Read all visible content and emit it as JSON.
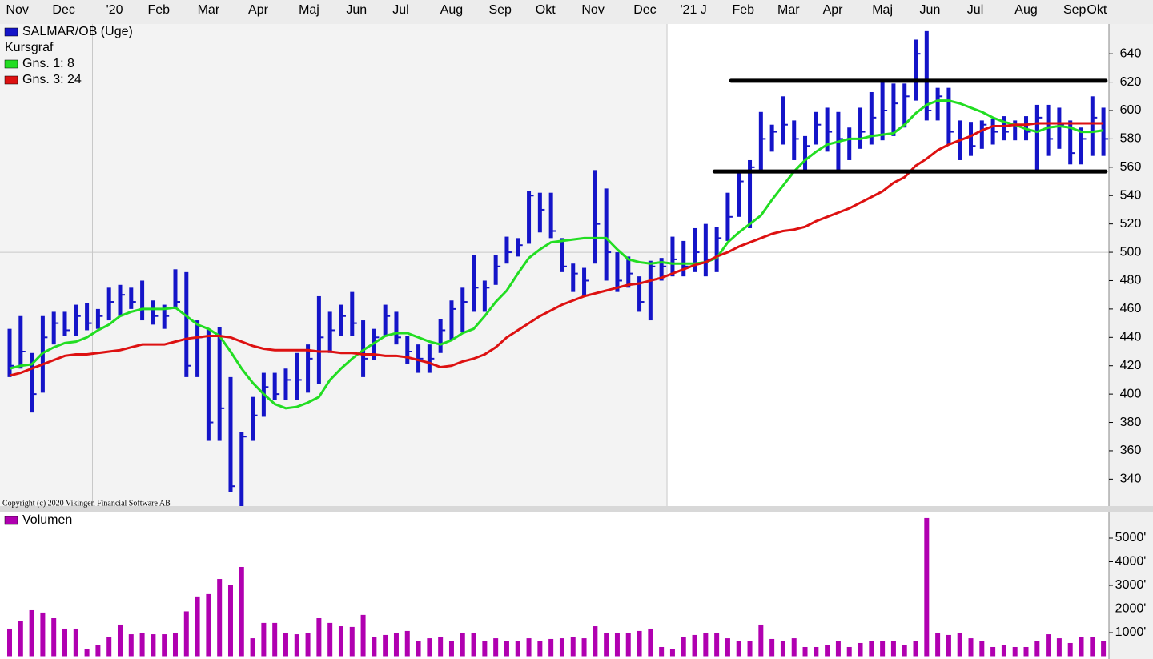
{
  "chart_data": [
    {
      "type": "ohlc",
      "subtitle": "Kursgraf",
      "annotation": "Copyright (c) 2020 Vikingen Financial Software AB",
      "x": [
        0,
        1,
        2,
        3,
        4,
        5,
        6,
        7,
        8,
        9,
        10,
        11,
        12,
        13,
        14,
        15,
        16,
        17,
        18,
        19,
        20,
        21,
        22,
        23,
        24,
        25,
        26,
        27,
        28,
        29,
        30,
        31,
        32,
        33,
        34,
        35,
        36,
        37,
        38,
        39,
        40,
        41,
        42,
        43,
        44,
        45,
        46,
        47,
        48,
        49,
        50,
        51,
        52,
        53,
        54,
        55,
        56,
        57,
        58,
        59,
        60,
        61,
        62,
        63,
        64,
        65,
        66,
        67,
        68,
        69,
        70,
        71,
        72,
        73,
        74,
        75,
        76,
        77,
        78,
        79,
        80,
        81,
        82,
        83,
        84,
        85,
        86,
        87,
        88,
        89,
        90,
        91,
        92,
        93,
        94,
        95,
        96,
        97,
        98,
        99
      ],
      "series": [
        {
          "name": "SALMAR/OB (Uge)",
          "color": "#1414c8",
          "high": [
            446,
            455,
            429,
            455,
            458,
            458,
            463,
            464,
            460,
            475,
            477,
            475,
            480,
            466,
            463,
            488,
            486,
            452,
            446,
            447,
            412,
            373,
            398,
            415,
            415,
            418,
            429,
            435,
            469,
            458,
            463,
            472,
            452,
            446,
            463,
            458,
            441,
            435,
            435,
            453,
            466,
            475,
            498,
            480,
            498,
            511,
            510,
            543,
            542,
            542,
            510,
            492,
            489,
            558,
            545,
            500,
            497,
            483,
            494,
            496,
            511,
            508,
            517,
            520,
            518,
            542,
            556,
            565,
            599,
            590,
            610,
            593,
            582,
            599,
            602,
            599,
            588,
            602,
            613,
            621,
            619,
            619,
            650,
            656,
            616,
            616,
            593,
            592,
            593,
            594,
            596,
            593,
            596,
            604,
            604,
            602,
            593,
            588,
            610,
            602
          ],
          "low": [
            412,
            418,
            387,
            401,
            435,
            441,
            441,
            445,
            446,
            452,
            455,
            460,
            452,
            449,
            446,
            460,
            412,
            412,
            367,
            367,
            331,
            321,
            367,
            384,
            396,
            396,
            396,
            401,
            407,
            429,
            441,
            441,
            412,
            424,
            441,
            435,
            421,
            415,
            415,
            429,
            438,
            444,
            458,
            458,
            477,
            492,
            497,
            506,
            514,
            510,
            486,
            472,
            469,
            492,
            480,
            472,
            475,
            458,
            452,
            480,
            483,
            483,
            486,
            483,
            486,
            508,
            525,
            517,
            556,
            571,
            576,
            565,
            556,
            576,
            571,
            558,
            565,
            573,
            576,
            579,
            582,
            588,
            607,
            593,
            593,
            576,
            565,
            568,
            573,
            576,
            579,
            579,
            579,
            558,
            568,
            573,
            562,
            562,
            568,
            568
          ],
          "close": [
            420,
            430,
            400,
            440,
            450,
            445,
            455,
            450,
            455,
            465,
            470,
            465,
            460,
            455,
            455,
            465,
            420,
            440,
            380,
            390,
            335,
            370,
            385,
            405,
            400,
            410,
            410,
            425,
            440,
            445,
            455,
            450,
            425,
            440,
            455,
            440,
            430,
            425,
            425,
            445,
            460,
            465,
            475,
            475,
            490,
            500,
            505,
            540,
            530,
            515,
            490,
            485,
            480,
            520,
            500,
            480,
            485,
            465,
            490,
            490,
            495,
            490,
            500,
            495,
            510,
            525,
            550,
            560,
            580,
            585,
            590,
            580,
            575,
            590,
            585,
            580,
            580,
            585,
            595,
            600,
            605,
            610,
            640,
            600,
            610,
            585,
            580,
            575,
            590,
            585,
            585,
            590,
            585,
            595,
            580,
            590,
            570,
            580,
            595,
            580
          ]
        },
        {
          "name": "Gns. 1: 8",
          "type": "line",
          "color": "#22dd22",
          "values": [
            418,
            420,
            421,
            429,
            433,
            436,
            437,
            440,
            445,
            449,
            455,
            458,
            460,
            460,
            460,
            461,
            455,
            449,
            446,
            441,
            430,
            418,
            408,
            400,
            393,
            390,
            391,
            394,
            398,
            410,
            418,
            425,
            431,
            436,
            441,
            443,
            443,
            440,
            437,
            435,
            438,
            443,
            446,
            455,
            465,
            473,
            485,
            496,
            502,
            507,
            508,
            509,
            510,
            510,
            510,
            502,
            495,
            493,
            492,
            493,
            492,
            492,
            492,
            493,
            496,
            507,
            514,
            520,
            526,
            537,
            547,
            557,
            565,
            571,
            576,
            578,
            580,
            580,
            582,
            583,
            584,
            590,
            598,
            604,
            607,
            607,
            605,
            602,
            599,
            595,
            592,
            590,
            587,
            585,
            588,
            589,
            588,
            585,
            585,
            586
          ]
        },
        {
          "name": "Gns. 3: 24",
          "type": "line",
          "color": "#dd1111",
          "values": [
            413,
            415,
            418,
            421,
            424,
            427,
            428,
            428,
            429,
            430,
            431,
            433,
            435,
            435,
            435,
            437,
            439,
            440,
            441,
            441,
            440,
            437,
            434,
            432,
            431,
            431,
            431,
            431,
            430,
            430,
            429,
            429,
            428,
            428,
            427,
            427,
            426,
            424,
            422,
            419,
            420,
            423,
            425,
            428,
            433,
            440,
            445,
            450,
            455,
            459,
            463,
            466,
            469,
            471,
            473,
            475,
            477,
            478,
            480,
            482,
            485,
            488,
            491,
            493,
            497,
            500,
            504,
            507,
            510,
            513,
            515,
            516,
            518,
            522,
            525,
            528,
            531,
            535,
            539,
            543,
            549,
            553,
            561,
            566,
            572,
            576,
            579,
            582,
            586,
            589,
            589,
            590,
            590,
            591,
            591,
            591,
            591,
            591,
            591,
            591
          ]
        }
      ],
      "lines": [
        {
          "color": "#000000",
          "x": [
            63.8,
            99.2
          ],
          "y": [
            557,
            557
          ]
        },
        {
          "color": "#000000",
          "x": [
            65.3,
            99.2
          ],
          "y": [
            621,
            621
          ]
        }
      ],
      "xlim": [
        -0.87,
        99.5
      ],
      "ylim": [
        321,
        661
      ],
      "xticks": [
        {
          "value": 0.7,
          "label": "Nov"
        },
        {
          "value": 4.9,
          "label": "Dec"
        },
        {
          "value": 9.5,
          "label": "'20"
        },
        {
          "value": 13.5,
          "label": "Feb"
        },
        {
          "value": 18.0,
          "label": "Mar"
        },
        {
          "value": 22.5,
          "label": "Apr"
        },
        {
          "value": 27.1,
          "label": "Maj"
        },
        {
          "value": 31.4,
          "label": "Jun"
        },
        {
          "value": 35.4,
          "label": "Jul"
        },
        {
          "value": 40.0,
          "label": "Aug"
        },
        {
          "value": 44.4,
          "label": "Sep"
        },
        {
          "value": 48.5,
          "label": "Okt"
        },
        {
          "value": 52.8,
          "label": "Nov"
        },
        {
          "value": 57.5,
          "label": "Dec"
        },
        {
          "value": 61.9,
          "label": "'21 J"
        },
        {
          "value": 66.4,
          "label": "Feb"
        },
        {
          "value": 70.5,
          "label": "Mar"
        },
        {
          "value": 74.5,
          "label": "Apr"
        },
        {
          "value": 79.0,
          "label": "Maj"
        },
        {
          "value": 83.3,
          "label": "Jun"
        },
        {
          "value": 87.4,
          "label": "Jul"
        },
        {
          "value": 92.0,
          "label": "Aug"
        },
        {
          "value": 96.4,
          "label": "Sep"
        },
        {
          "value": 98.4,
          "label": "Okt"
        }
      ],
      "yticks": [
        340,
        360,
        380,
        400,
        420,
        440,
        460,
        480,
        500,
        520,
        540,
        560,
        580,
        600,
        620,
        640
      ],
      "grid_x": [
        7.5,
        59.5
      ],
      "grid_y": [
        500
      ]
    },
    {
      "type": "bar",
      "series": [
        {
          "name": "Volumen",
          "color": "#b000b0",
          "values": [
            1170,
            1500,
            1950,
            1850,
            1610,
            1170,
            1170,
            320,
            460,
            830,
            1340,
            930,
            1000,
            930,
            930,
            1000,
            1900,
            2530,
            2630,
            3270,
            3030,
            3780,
            760,
            1410,
            1410,
            1000,
            930,
            1000,
            1610,
            1410,
            1270,
            1240,
            1750,
            830,
            900,
            1000,
            1070,
            660,
            760,
            830,
            660,
            1000,
            1000,
            660,
            760,
            660,
            660,
            760,
            660,
            730,
            760,
            830,
            760,
            1270,
            1000,
            1000,
            1000,
            1070,
            1170,
            390,
            320,
            830,
            900,
            1000,
            1000,
            760,
            660,
            660,
            1340,
            730,
            660,
            760,
            390,
            390,
            490,
            660,
            390,
            560,
            660,
            660,
            660,
            490,
            660,
            5850,
            1000,
            900,
            1000,
            760,
            660,
            390,
            490,
            390,
            390,
            660,
            930,
            760,
            560,
            830,
            830,
            660
          ]
        }
      ],
      "xlim": [
        -0.87,
        99.5
      ],
      "ylim": [
        -119,
        6085
      ],
      "yticks": [
        {
          "value": 1000,
          "label": "1000'"
        },
        {
          "value": 2000,
          "label": "2000'"
        },
        {
          "value": 3000,
          "label": "3000'"
        },
        {
          "value": 4000,
          "label": "4000'"
        },
        {
          "value": 5000,
          "label": "5000'"
        }
      ]
    }
  ]
}
